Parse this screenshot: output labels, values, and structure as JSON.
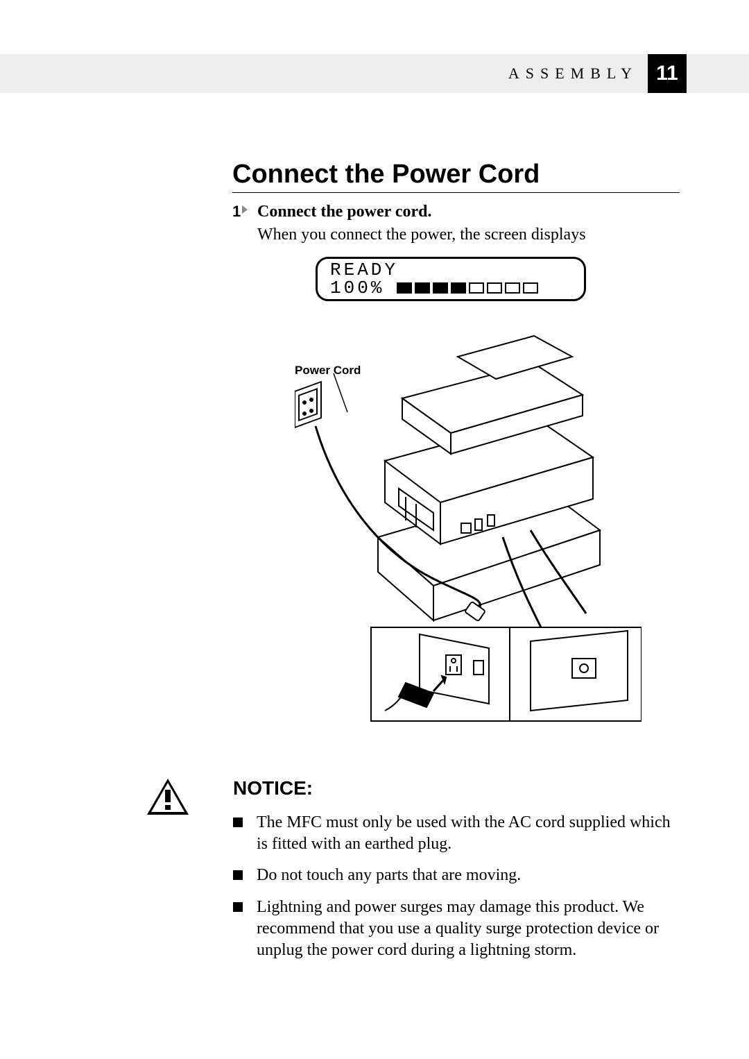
{
  "header": {
    "section_label": "ASSEMBLY",
    "page_number": "11",
    "bar_bg": "#eeeeee",
    "page_box_bg": "#000000",
    "page_box_fg": "#ffffff"
  },
  "title": "Connect the Power Cord",
  "step": {
    "number": "1",
    "text": "Connect the power cord."
  },
  "intro": "When you connect the power, the screen displays",
  "lcd": {
    "line1": "READY",
    "line2_left": "100%",
    "bars_total": 8,
    "bars_filled": 4
  },
  "figure": {
    "power_cord_label": "Power Cord"
  },
  "notice": {
    "heading": "NOTICE:",
    "items": [
      "The MFC must only be used with the AC cord supplied which is fitted with an earthed plug.",
      "Do not touch any parts that are moving.",
      "Lightning and power surges may damage this product. We recommend that you use a quality surge protection device or unplug the power cord during a lightning storm."
    ]
  },
  "colors": {
    "text": "#000000",
    "page_bg": "#ffffff"
  }
}
